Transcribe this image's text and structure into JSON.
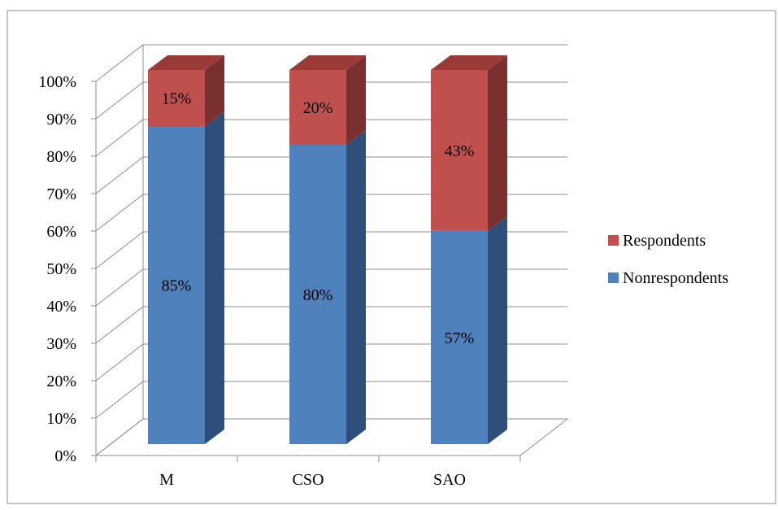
{
  "chart_data": {
    "type": "bar",
    "stacked": true,
    "percent_stacked": true,
    "three_d": true,
    "categories": [
      "M",
      "CSO",
      "SAO"
    ],
    "series": [
      {
        "name": "Nonrespondents",
        "values": [
          85,
          80,
          57
        ],
        "labels": [
          "85%",
          "80%",
          "57%"
        ],
        "color": "#4F81BD",
        "side_color": "#2F4F7A",
        "top_color": "#3F6898"
      },
      {
        "name": "Respondents",
        "values": [
          15,
          20,
          43
        ],
        "labels": [
          "15%",
          "20%",
          "43%"
        ],
        "color": "#C0504D",
        "side_color": "#7A302E",
        "top_color": "#9B3B38"
      }
    ],
    "legend_order": [
      "Respondents",
      "Nonrespondents"
    ],
    "ylim": [
      0,
      100
    ],
    "y_ticks": [
      "0%",
      "10%",
      "20%",
      "30%",
      "40%",
      "50%",
      "60%",
      "70%",
      "80%",
      "90%",
      "100%"
    ],
    "grid": true,
    "legend_position": "right",
    "title": "",
    "xlabel": "",
    "ylabel": ""
  }
}
